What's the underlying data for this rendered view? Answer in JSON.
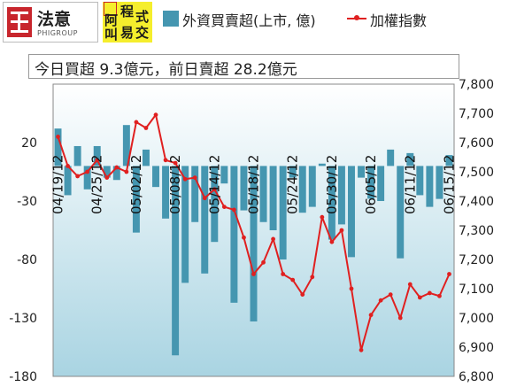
{
  "logos": {
    "left_brand": "法意",
    "left_brand_sub": "PHIGROUP",
    "right_chars": [
      "阿",
      "程",
      "式",
      "叫",
      "易",
      "交"
    ]
  },
  "legend": {
    "bar_label": "外資買賣超(上市, 億)",
    "line_label": "加權指數"
  },
  "info_text": "今日買超 9.3億元，前日賣超 28.2億元",
  "chart_data": {
    "type": "bar+line",
    "x": [
      "04/19/12",
      "04/20/12",
      "04/23/12",
      "04/24/12",
      "04/25/12",
      "04/26/12",
      "04/27/12",
      "04/30/12",
      "05/02/12",
      "05/03/12",
      "05/04/12",
      "05/07/12",
      "05/08/12",
      "05/09/12",
      "05/10/12",
      "05/11/12",
      "05/14/12",
      "05/15/12",
      "05/16/12",
      "05/17/12",
      "05/18/12",
      "05/21/12",
      "05/22/12",
      "05/23/12",
      "05/24/12",
      "05/25/12",
      "05/28/12",
      "05/29/12",
      "05/30/12",
      "05/31/12",
      "06/01/12",
      "06/04/12",
      "06/05/12",
      "06/06/12",
      "06/07/12",
      "06/08/12",
      "06/11/12",
      "06/12/12",
      "06/13/12",
      "06/14/12",
      "06/15/12"
    ],
    "x_tick_labels": [
      "04/19/12",
      "04/25/12",
      "05/02/12",
      "05/08/12",
      "05/14/12",
      "05/18/12",
      "05/24/12",
      "05/30/12",
      "06/05/12",
      "06/11/12",
      "06/15/12"
    ],
    "series": [
      {
        "name": "外資買賣超(上市, 億)",
        "type": "bar",
        "axis": "left",
        "values": [
          32,
          -25,
          17,
          -20,
          17,
          -10,
          -12,
          35,
          -57,
          14,
          -18,
          -45,
          -162,
          -100,
          -48,
          -92,
          -65,
          -15,
          -117,
          -38,
          -133,
          -48,
          -55,
          -80,
          -10,
          -40,
          -35,
          2,
          -63,
          -50,
          -78,
          -10,
          -28,
          -30,
          14,
          -79,
          11,
          -25,
          -35,
          -28.2,
          9.3
        ]
      },
      {
        "name": "加權指數",
        "type": "line",
        "axis": "right",
        "values": [
          7620,
          7520,
          7485,
          7500,
          7540,
          7480,
          7515,
          7500,
          7670,
          7650,
          7695,
          7540,
          7530,
          7475,
          7480,
          7410,
          7440,
          7380,
          7370,
          7275,
          7150,
          7190,
          7270,
          7150,
          7130,
          7080,
          7140,
          7345,
          7260,
          7300,
          7100,
          6890,
          7010,
          7060,
          7080,
          7000,
          7115,
          7070,
          7085,
          7075,
          7150
        ]
      }
    ],
    "y_left": {
      "range": [
        -180,
        70
      ],
      "ticks": [
        "20",
        "-30",
        "-80",
        "-130",
        "-180"
      ]
    },
    "y_right": {
      "range": [
        6800,
        7800
      ],
      "ticks": [
        "7,800",
        "7,700",
        "7,600",
        "7,500",
        "7,400",
        "7,300",
        "7,200",
        "7,100",
        "7,000",
        "6,900",
        "6,800"
      ]
    },
    "colors": {
      "bar": "#4596b0",
      "line": "#e02020",
      "plot_bg_top": "#ffffff",
      "plot_bg_bottom": "#a9d4e2"
    }
  }
}
